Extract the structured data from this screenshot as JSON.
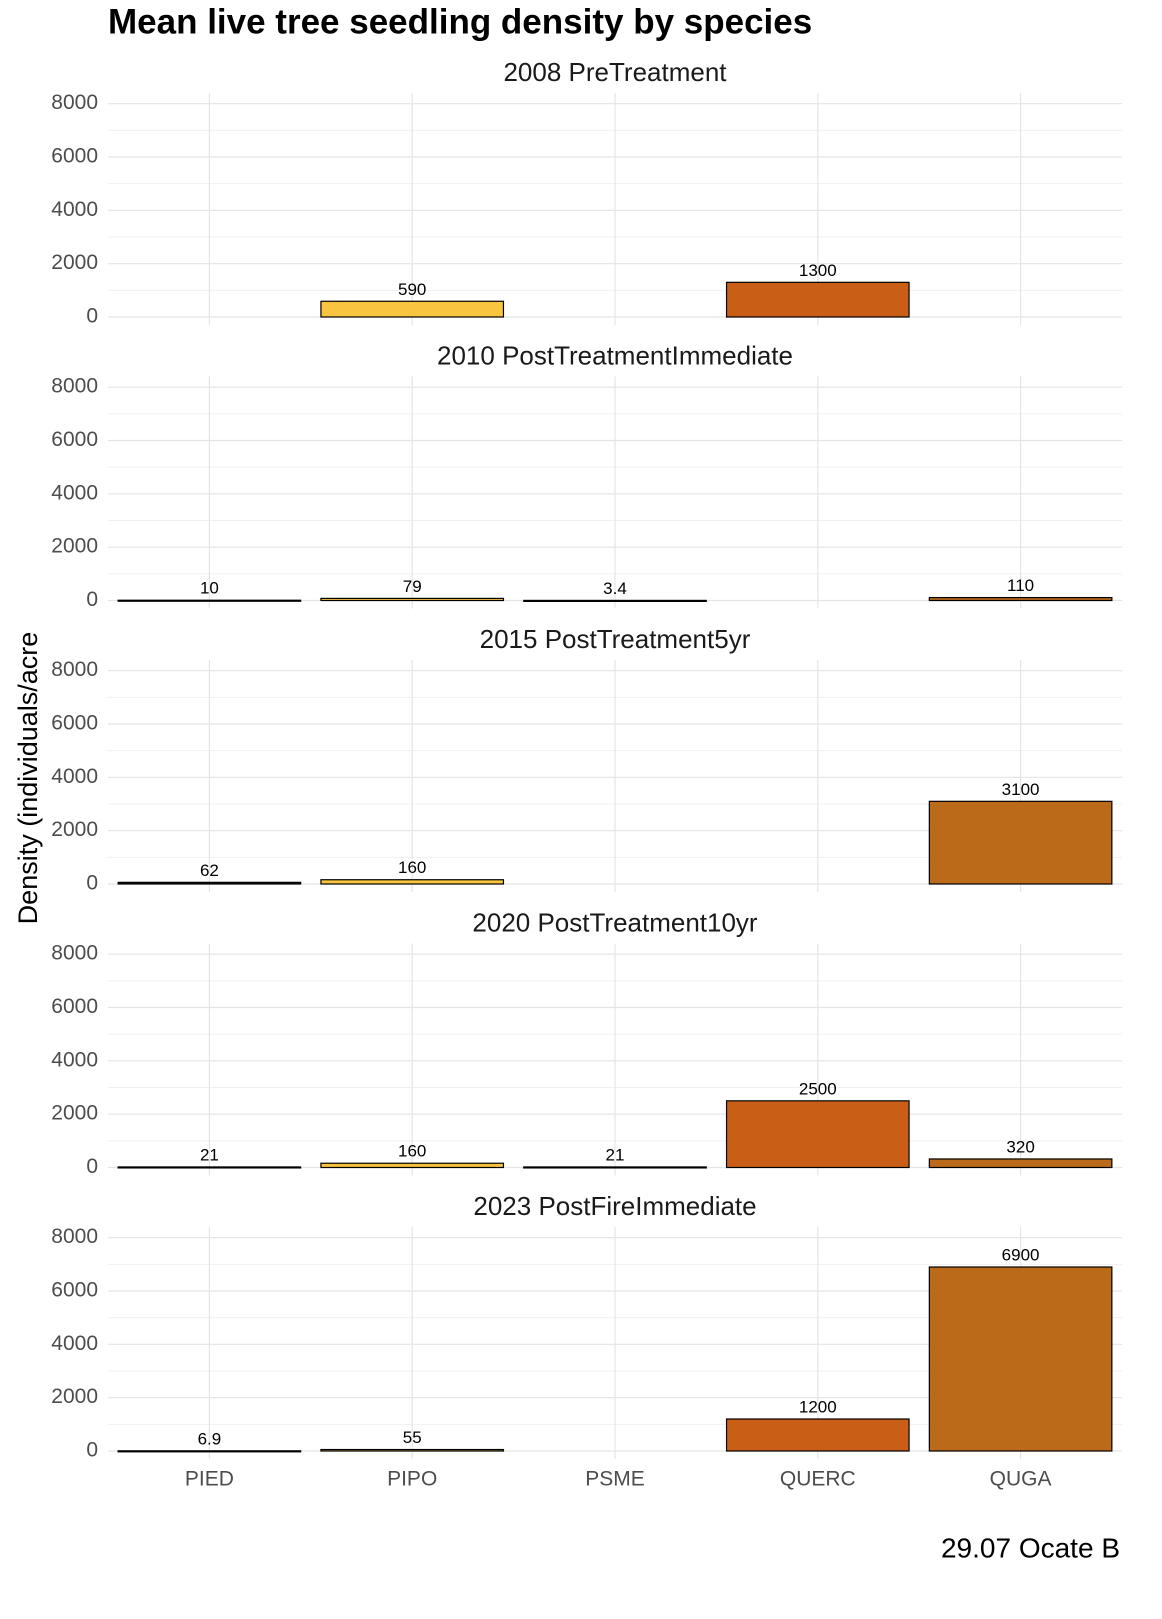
{
  "chart_data": {
    "type": "bar",
    "title": "Mean live tree seedling density by species",
    "y_label": "Density (individuals/acre",
    "caption": "29.07 Ocate B",
    "categories": [
      "PIED",
      "PIPO",
      "PSME",
      "QUERC",
      "QUGA"
    ],
    "colors": [
      "#1a1a1a",
      "#F9C440",
      "#555555",
      "#C95F17",
      "#BA6A18"
    ],
    "ylim": [
      -300,
      8400
    ],
    "yticks": [
      0,
      2000,
      4000,
      6000,
      8000
    ],
    "minor_yticks": [
      1000,
      3000,
      5000,
      7000
    ],
    "grid": true,
    "facets": [
      {
        "title": "2008 PreTreatment",
        "values": [
          null,
          590,
          null,
          1300,
          null
        ]
      },
      {
        "title": "2010 PostTreatmentImmediate",
        "values": [
          10,
          79,
          3.4,
          null,
          110
        ]
      },
      {
        "title": "2015 PostTreatment5yr",
        "values": [
          62,
          160,
          null,
          null,
          3100
        ]
      },
      {
        "title": "2020 PostTreatment10yr",
        "values": [
          21,
          160,
          21,
          2500,
          320
        ]
      },
      {
        "title": "2023 PostFireImmediate",
        "values": [
          6.9,
          55,
          null,
          1200,
          6900
        ]
      }
    ]
  }
}
